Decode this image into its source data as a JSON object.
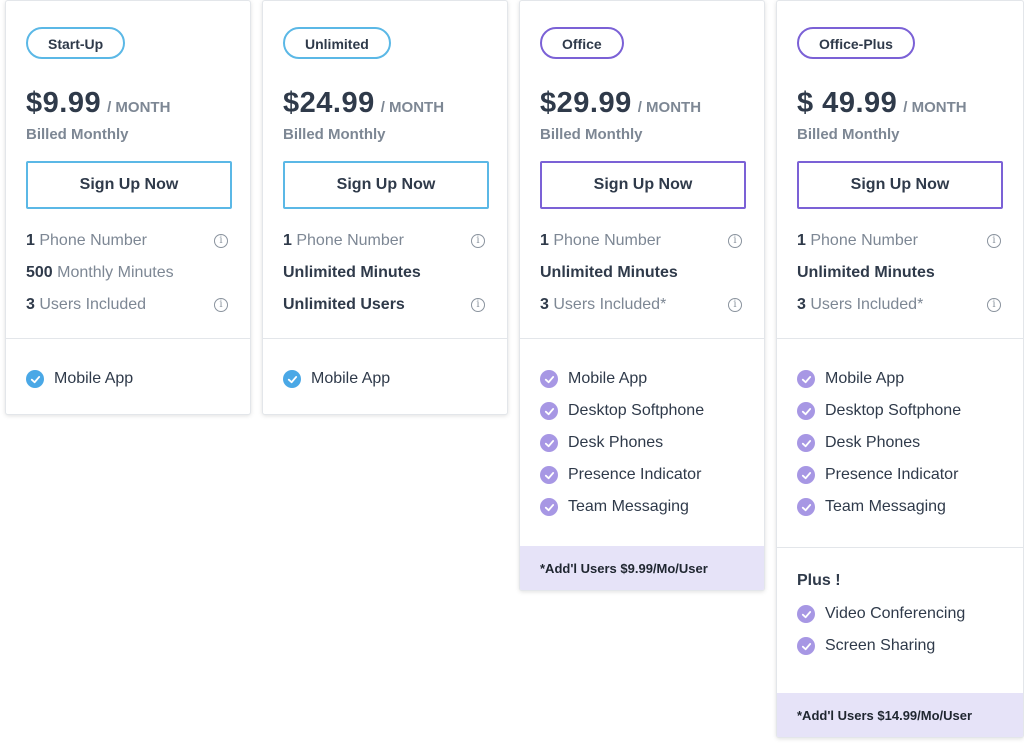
{
  "colors": {
    "blue_accent": "#5bb8e6",
    "purple_accent": "#7b61d6",
    "blue_check": "#4aa8e6",
    "purple_check": "#a797e4"
  },
  "icons": {
    "info": "info-icon",
    "check": "check-circle-icon"
  },
  "plans": [
    {
      "name": "Start-Up",
      "price": "$9.99",
      "period": "/ MONTH",
      "billing": "Billed Monthly",
      "cta": "Sign Up Now",
      "specs": [
        {
          "count": "1",
          "text": "Phone Number"
        },
        {
          "count": "500",
          "text": "Monthly Minutes"
        },
        {
          "count": "3",
          "text": "Users Included"
        }
      ],
      "features": [
        "Mobile App"
      ]
    },
    {
      "name": "Unlimited",
      "price": "$24.99",
      "period": "/ MONTH",
      "billing": "Billed Monthly",
      "cta": "Sign Up Now",
      "specs": [
        {
          "count": "1",
          "text": "Phone Number"
        },
        {
          "text": "Unlimited Minutes"
        },
        {
          "text": "Unlimited Users"
        }
      ],
      "features": [
        "Mobile App"
      ]
    },
    {
      "name": "Office",
      "price": "$29.99",
      "period": "/ MONTH",
      "billing": "Billed Monthly",
      "cta": "Sign Up Now",
      "specs": [
        {
          "count": "1",
          "text": "Phone Number"
        },
        {
          "text": "Unlimited Minutes"
        },
        {
          "count": "3",
          "text": "Users Included*"
        }
      ],
      "features": [
        "Mobile App",
        "Desktop Softphone",
        "Desk Phones",
        "Presence Indicator",
        "Team Messaging"
      ],
      "footnote": "*Add'l Users $9.99/Mo/User"
    },
    {
      "name": "Office-Plus",
      "price": "$ 49.99",
      "period": "/ MONTH",
      "billing": "Billed Monthly",
      "cta": "Sign Up Now",
      "specs": [
        {
          "count": "1",
          "text": "Phone Number"
        },
        {
          "text": "Unlimited Minutes"
        },
        {
          "count": "3",
          "text": "Users Included*"
        }
      ],
      "features": [
        "Mobile App",
        "Desktop Softphone",
        "Desk Phones",
        "Presence Indicator",
        "Team Messaging"
      ],
      "plus_title": "Plus !",
      "plus_features": [
        "Video Conferencing",
        "Screen Sharing"
      ],
      "footnote": "*Add'l Users $14.99/Mo/User"
    }
  ]
}
